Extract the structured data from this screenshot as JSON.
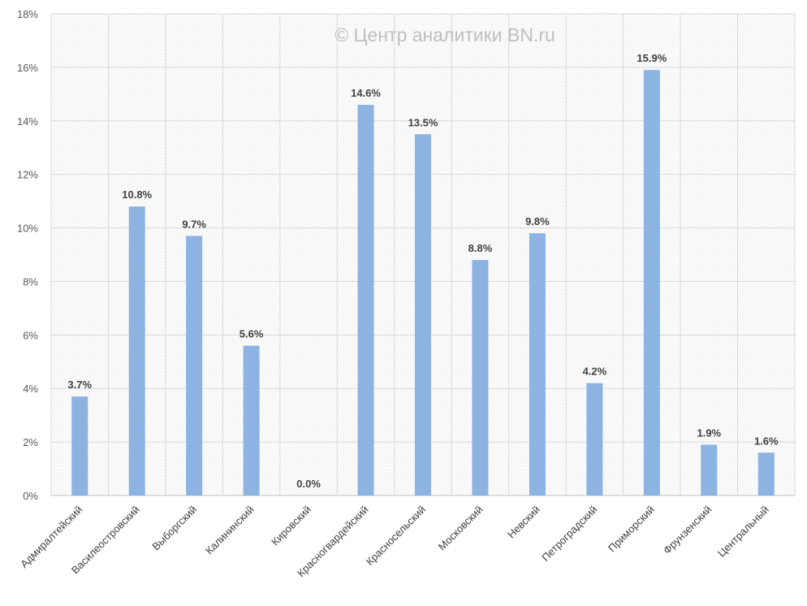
{
  "chart_data": {
    "type": "bar",
    "title": "",
    "watermark": "© Центр аналитики BN.ru",
    "xlabel": "",
    "ylabel": "",
    "categories": [
      "Адмиралтейский",
      "Василеостровский",
      "Выборгский",
      "Калининский",
      "Кировский",
      "Красногвардейский",
      "Красносельский",
      "Московский",
      "Невский",
      "Петроградский",
      "Приморский",
      "Фрунзенский",
      "Центральный"
    ],
    "values": [
      3.7,
      10.8,
      9.7,
      5.6,
      0.0,
      14.6,
      13.5,
      8.8,
      9.8,
      4.2,
      15.9,
      1.9,
      1.6
    ],
    "data_labels": [
      "3.7%",
      "10.8%",
      "9.7%",
      "5.6%",
      "0.0%",
      "14.6%",
      "13.5%",
      "8.8%",
      "9.8%",
      "4.2%",
      "15.9%",
      "1.9%",
      "1.6%"
    ],
    "ylim": [
      0,
      18
    ],
    "yticks": [
      0,
      2,
      4,
      6,
      8,
      10,
      12,
      14,
      16,
      18
    ],
    "ytick_labels": [
      "0%",
      "2%",
      "4%",
      "6%",
      "8%",
      "10%",
      "12%",
      "14%",
      "16%",
      "18%"
    ],
    "grid": true,
    "legend": "none",
    "colors": {
      "bar": "#8db3e2",
      "grid": "#d9d9d9",
      "axis": "#bfbfbf"
    }
  }
}
